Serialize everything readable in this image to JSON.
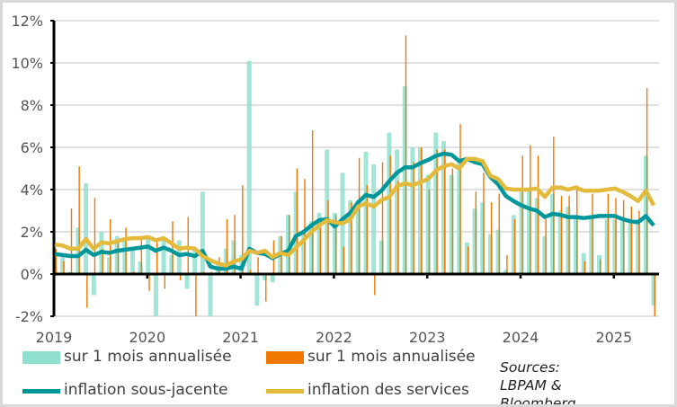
{
  "chart_data": {
    "type": "bar+line",
    "x_start": "2019-01",
    "frequency": "monthly",
    "x_tick_labels": [
      "2019",
      "2020",
      "2021",
      "2022",
      "2023",
      "2024",
      "2025"
    ],
    "y_tick_labels": [
      "-2%",
      "0%",
      "2%",
      "4%",
      "6%",
      "8%",
      "10%",
      "12%"
    ],
    "ylim": [
      -2,
      12
    ],
    "grid": true,
    "legend_placement": "bottom",
    "series": [
      {
        "name": "sur 1 mois annualisée",
        "kind": "bar",
        "color": "#8fe0cf",
        "values": [
          0.5,
          0.8,
          0.1,
          2.2,
          4.3,
          -1.0,
          2.0,
          0.8,
          1.8,
          1.6,
          1.3,
          0.6,
          1.7,
          -2.0,
          1.6,
          0.9,
          1.6,
          -0.7,
          1.2,
          3.9,
          -2.0,
          0.6,
          1.2,
          1.6,
          0.9,
          10.1,
          -1.5,
          -0.3,
          -0.4,
          1.8,
          2.8,
          3.9,
          2.1,
          2.5,
          2.9,
          5.9,
          2.9,
          4.8,
          3.5,
          3.5,
          5.8,
          5.2,
          1.6,
          6.7,
          5.9,
          8.9,
          6.0,
          6.0,
          4.7,
          6.7,
          6.3,
          4.7,
          5.3,
          1.5,
          3.1,
          3.4,
          1.9,
          2.1,
          0.2,
          2.8,
          3.9,
          4.1,
          3.6,
          1.8,
          3.8,
          3.0,
          3.2,
          2.8,
          1.0,
          2.7,
          0.9,
          2.6,
          2.6,
          2.5,
          2.4,
          2.6,
          5.6,
          -1.5
        ]
      },
      {
        "name": "sur 1 mois annualisée",
        "kind": "bar",
        "color": "#f07800",
        "values": [
          1.2,
          0.6,
          3.1,
          5.1,
          -1.6,
          3.6,
          1.2,
          2.6,
          1.5,
          2.2,
          0.1,
          1.8,
          -0.8,
          1.5,
          -0.7,
          2.5,
          -0.3,
          2.7,
          -2.0,
          0.1,
          0.1,
          0.8,
          2.6,
          2.8,
          4.2,
          0.2,
          0.8,
          -1.3,
          1.6,
          1.8,
          2.8,
          5.0,
          4.5,
          6.8,
          2.2,
          3.5,
          2.8,
          1.3,
          3.4,
          5.5,
          4.2,
          -1.0,
          5.3,
          5.6,
          4.4,
          11.3,
          5.3,
          6.0,
          4.0,
          5.9,
          5.9,
          5.0,
          7.1,
          1.3,
          3.9,
          4.8,
          3.4,
          3.8,
          0.9,
          2.6,
          5.6,
          6.1,
          5.6,
          2.6,
          6.5,
          3.7,
          3.7,
          4.2,
          0.6,
          3.8,
          0.7,
          3.8,
          3.6,
          3.5,
          3.2,
          3.0,
          8.8,
          -2.0
        ]
      },
      {
        "name": "inflation sous-jacente",
        "kind": "line",
        "color": "#00979b",
        "values": [
          0.95,
          0.9,
          0.85,
          0.85,
          1.15,
          0.9,
          1.05,
          1.0,
          1.1,
          1.15,
          1.2,
          1.25,
          1.3,
          1.1,
          1.25,
          1.1,
          0.9,
          0.95,
          0.85,
          1.1,
          0.35,
          0.25,
          0.25,
          0.35,
          0.25,
          1.2,
          1.0,
          0.95,
          0.75,
          0.95,
          1.1,
          1.8,
          2.0,
          2.3,
          2.55,
          2.6,
          2.25,
          2.6,
          2.9,
          3.4,
          3.75,
          3.65,
          3.95,
          4.4,
          4.8,
          5.05,
          5.05,
          5.25,
          5.4,
          5.6,
          5.7,
          5.65,
          5.35,
          5.45,
          5.3,
          5.2,
          4.6,
          4.25,
          3.7,
          3.45,
          3.25,
          3.1,
          3.0,
          2.7,
          2.85,
          2.8,
          2.7,
          2.7,
          2.65,
          2.7,
          2.75,
          2.75,
          2.75,
          2.6,
          2.5,
          2.45,
          2.75,
          2.3
        ]
      },
      {
        "name": "inflation des services",
        "kind": "line",
        "color": "#e3ba3c",
        "values": [
          1.4,
          1.35,
          1.2,
          1.2,
          1.65,
          1.2,
          1.5,
          1.45,
          1.55,
          1.65,
          1.7,
          1.7,
          1.75,
          1.6,
          1.7,
          1.45,
          1.2,
          1.25,
          1.2,
          0.85,
          0.65,
          0.5,
          0.4,
          0.6,
          0.7,
          1.1,
          1.0,
          1.1,
          0.8,
          1.0,
          0.9,
          1.25,
          1.6,
          2.0,
          2.3,
          2.55,
          2.45,
          2.4,
          2.6,
          3.2,
          3.35,
          3.2,
          3.5,
          3.65,
          4.15,
          4.3,
          4.2,
          4.35,
          4.5,
          4.9,
          5.1,
          5.2,
          5.0,
          5.45,
          5.45,
          5.35,
          4.65,
          4.5,
          4.05,
          4.0,
          4.0,
          4.0,
          4.05,
          3.65,
          4.1,
          4.1,
          4.0,
          4.1,
          3.95,
          3.95,
          3.95,
          4.0,
          4.05,
          3.9,
          3.7,
          3.45,
          3.95,
          3.25
        ]
      }
    ],
    "source": "Sources: LBPAM & Bloomberg"
  }
}
